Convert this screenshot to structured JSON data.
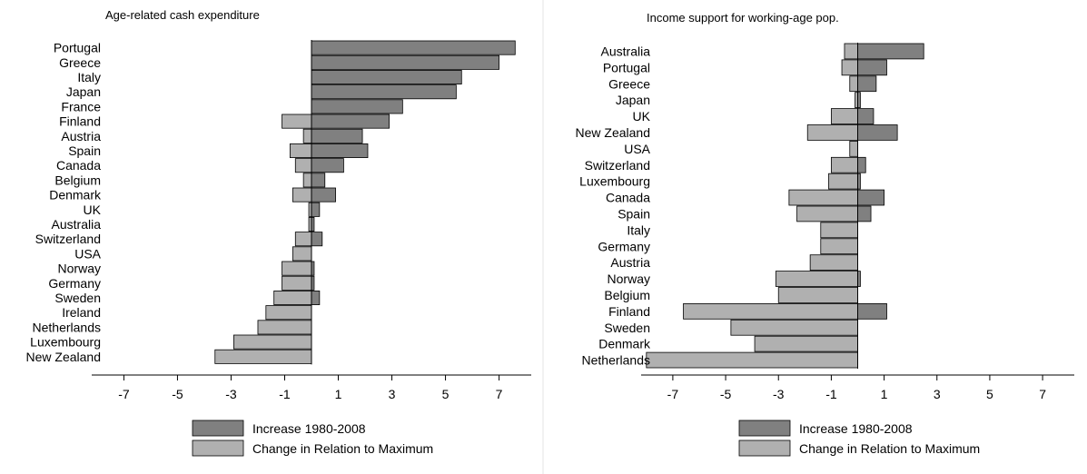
{
  "chart_data": [
    {
      "type": "bar",
      "orientation": "horizontal",
      "title": "Age-related cash expenditure",
      "categories": [
        "Portugal",
        "Greece",
        "Italy",
        "Japan",
        "France",
        "Finland",
        "Austria",
        "Spain",
        "Canada",
        "Belgium",
        "Denmark",
        "UK",
        "Australia",
        "Switzerland",
        "USA",
        "Norway",
        "Germany",
        "Sweden",
        "Ireland",
        "Netherlands",
        "Luxembourg",
        "New Zealand"
      ],
      "series": [
        {
          "name": "Increase 1980-2008",
          "color": "#808080",
          "values": [
            7.6,
            7.0,
            5.6,
            5.4,
            3.4,
            2.9,
            1.9,
            2.1,
            1.2,
            0.5,
            0.9,
            0.3,
            0.1,
            0.4,
            0.0,
            0.1,
            0.1,
            0.3,
            0.0,
            0.0,
            0.0,
            0.0
          ]
        },
        {
          "name": "Change in Relation to Maximum",
          "color": "#b0b0b0",
          "values": [
            0.0,
            0.0,
            0.0,
            0.0,
            0.0,
            -1.1,
            -0.3,
            -0.8,
            -0.6,
            -0.3,
            -0.7,
            -0.1,
            -0.1,
            -0.6,
            -0.7,
            -1.1,
            -1.1,
            -1.4,
            -1.7,
            -2.0,
            -2.9,
            -3.6
          ]
        }
      ],
      "xticks": [
        -7,
        -5,
        -3,
        -1,
        1,
        3,
        5,
        7
      ],
      "xlim": [
        -8.2,
        8.2
      ],
      "grid": false,
      "legend": "bottom"
    },
    {
      "type": "bar",
      "orientation": "horizontal",
      "title": "Income support for working-age pop.",
      "categories": [
        "Australia",
        "Portugal",
        "Greece",
        "Japan",
        "UK",
        "New Zealand",
        "USA",
        "Switzerland",
        "Luxembourg",
        "Canada",
        "Spain",
        "Italy",
        "Germany",
        "Austria",
        "Norway",
        "Belgium",
        "Finland",
        "Sweden",
        "Denmark",
        "Netherlands"
      ],
      "series": [
        {
          "name": "Increase 1980-2008",
          "color": "#808080",
          "values": [
            2.5,
            1.1,
            0.7,
            0.1,
            0.6,
            1.5,
            0.0,
            0.3,
            0.1,
            1.0,
            0.5,
            0.0,
            0.0,
            0.0,
            0.1,
            0.0,
            1.1,
            0.0,
            0.0,
            0.0
          ]
        },
        {
          "name": "Change in Relation to Maximum",
          "color": "#b0b0b0",
          "values": [
            -0.5,
            -0.6,
            -0.3,
            -0.1,
            -1.0,
            -1.9,
            -0.3,
            -1.0,
            -1.1,
            -2.6,
            -2.3,
            -1.4,
            -1.4,
            -1.8,
            -3.1,
            -3.0,
            -6.6,
            -4.8,
            -3.9,
            -8.0
          ]
        }
      ],
      "xticks": [
        -7,
        -5,
        -3,
        -1,
        1,
        3,
        5,
        7
      ],
      "xlim": [
        -8.2,
        8.2
      ],
      "grid": false,
      "legend": "bottom"
    }
  ]
}
